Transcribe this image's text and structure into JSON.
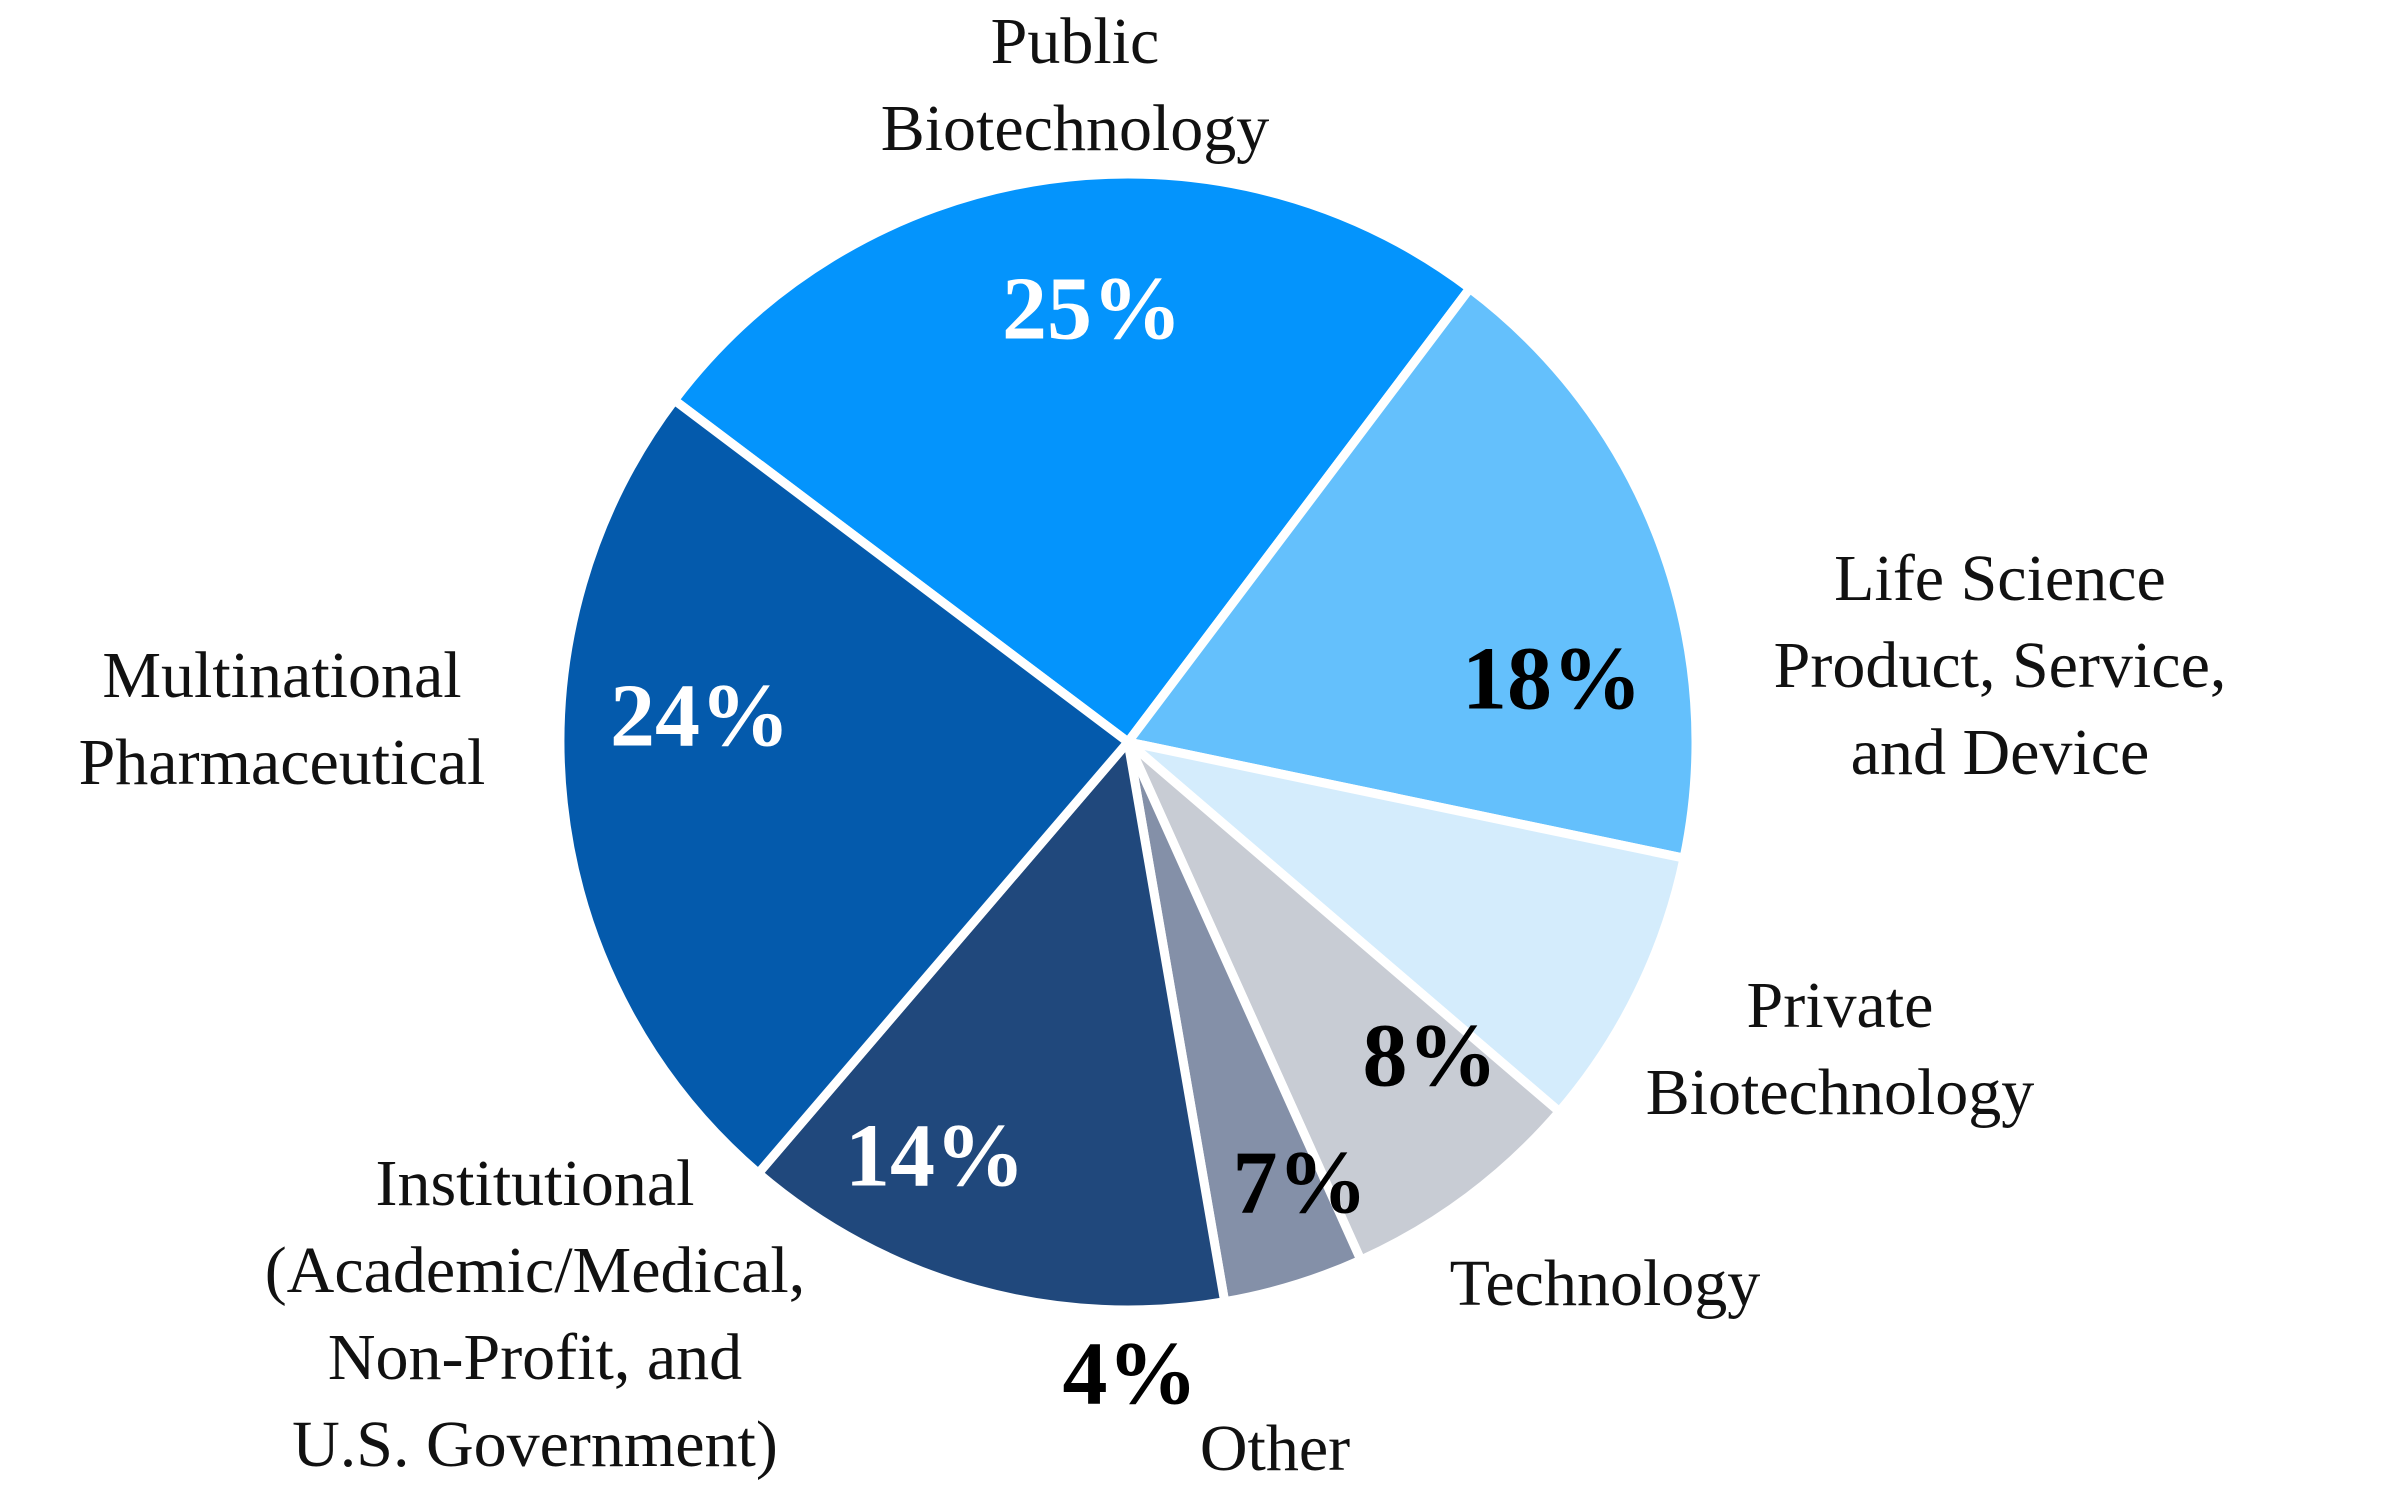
{
  "chart_data": {
    "type": "pie",
    "title": "",
    "slices": [
      {
        "name": "Public Biotechnology",
        "label_lines": [
          "Public",
          "Biotechnology"
        ],
        "value": 25,
        "value_label": "25%",
        "color": "#0494fc",
        "label_color": "#ffffff"
      },
      {
        "name": "Life Science Product, Service, and Device",
        "label_lines": [
          "Life Science",
          "Product, Service,",
          "and Device"
        ],
        "value": 18,
        "value_label": "18%",
        "color": "#64c0fc",
        "label_color": "#000000"
      },
      {
        "name": "Private Biotechnology",
        "label_lines": [
          "Private",
          "Biotechnology"
        ],
        "value": 8,
        "value_label": "8%",
        "color": "#d4ecfc",
        "label_color": "#000000"
      },
      {
        "name": "Technology",
        "label_lines": [
          "Technology"
        ],
        "value": 7,
        "value_label": "7%",
        "color": "#c8ccd4",
        "label_color": "#000000"
      },
      {
        "name": "Other",
        "label_lines": [
          "Other"
        ],
        "value": 4,
        "value_label": "4%",
        "color": "#8490a8",
        "label_color": "#000000"
      },
      {
        "name": "Institutional (Academic/Medical, Non-Profit, and U.S. Government)",
        "label_lines": [
          "Institutional",
          "(Academic/Medical,",
          "Non-Profit, and",
          "U.S. Government)"
        ],
        "value": 14,
        "value_label": "14%",
        "color": "#20487c",
        "label_color": "#ffffff"
      },
      {
        "name": "Multinational Pharmaceutical",
        "label_lines": [
          "Multinational",
          "Pharmaceutical"
        ],
        "value": 24,
        "value_label": "24%",
        "color": "#045aac",
        "label_color": "#ffffff"
      }
    ],
    "legend": "none"
  }
}
